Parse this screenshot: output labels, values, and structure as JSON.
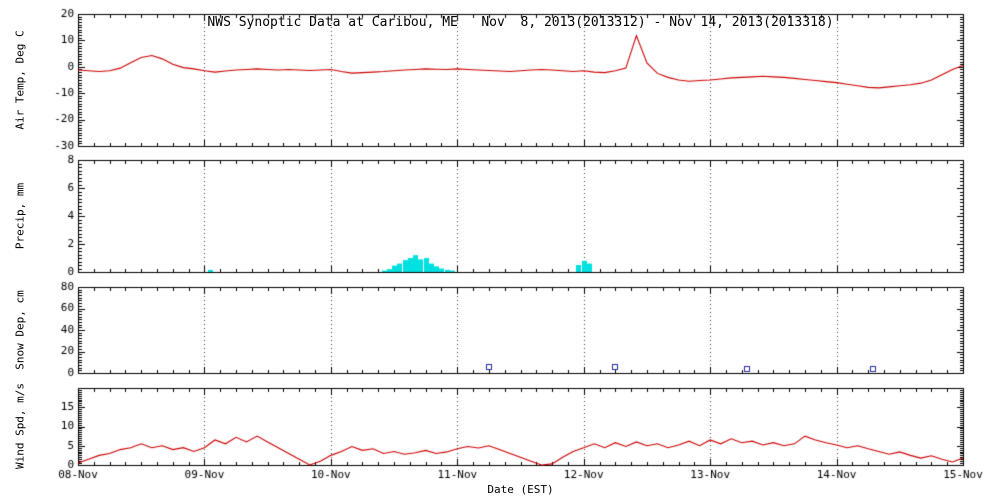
{
  "figure": {
    "title": "NWS Synoptic Data at Caribou, ME   Nov  8, 2013(2013312) - Nov 14, 2013(2013318)",
    "background": "#ffffff",
    "frame_color": "#000000",
    "gridline_color": "#444444"
  },
  "x_axis": {
    "label": "Date (EST)",
    "range_days": [
      0,
      7
    ],
    "tick_labels": [
      "08-Nov",
      "09-Nov",
      "10-Nov",
      "11-Nov",
      "12-Nov",
      "13-Nov",
      "14-Nov",
      "15-Nov"
    ],
    "minor_tick_hours": 3
  },
  "chart_data": [
    {
      "name": "air-temperature",
      "type": "line",
      "ylabel": "Air Temp, Deg C",
      "ylim": [
        -30,
        20
      ],
      "yticks": [
        20,
        10,
        0,
        -10,
        -20,
        -30
      ],
      "ymajor": 10,
      "yminor": 1,
      "color": "#cc0000",
      "x_start_hours": 0,
      "x_step_hours": 2,
      "values": [
        -1.2,
        -1.5,
        -1.8,
        -1.5,
        -0.5,
        1.5,
        3.5,
        4.3,
        3.0,
        1.0,
        -0.3,
        -0.8,
        -1.5,
        -2.0,
        -1.6,
        -1.2,
        -1.0,
        -0.8,
        -1.0,
        -1.2,
        -1.0,
        -1.2,
        -1.4,
        -1.2,
        -1.0,
        -1.8,
        -2.4,
        -2.2,
        -2.0,
        -1.8,
        -1.5,
        -1.2,
        -1.0,
        -0.8,
        -0.9,
        -1.0,
        -0.8,
        -1.0,
        -1.2,
        -1.4,
        -1.6,
        -1.8,
        -1.5,
        -1.2,
        -1.0,
        -1.2,
        -1.5,
        -1.8,
        -1.5,
        -2.0,
        -2.2,
        -1.5,
        -0.5,
        11.8,
        1.5,
        -2.5,
        -4.0,
        -5.0,
        -5.5,
        -5.2,
        -5.0,
        -4.6,
        -4.2,
        -4.0,
        -3.8,
        -3.6,
        -3.8,
        -4.0,
        -4.4,
        -4.8,
        -5.2,
        -5.6,
        -6.0,
        -6.6,
        -7.2,
        -7.8,
        -8.0,
        -7.6,
        -7.2,
        -6.8,
        -6.2,
        -5.0,
        -3.0,
        -1.0,
        0.5
      ]
    },
    {
      "name": "precipitation",
      "type": "bar",
      "ylabel": "Precip, mm",
      "ylim": [
        0,
        8
      ],
      "yticks": [
        8,
        6,
        4,
        2,
        0
      ],
      "ymajor": 2,
      "yminor": 0.25,
      "color": "#00e0e0",
      "bar_width_hours": 1,
      "points": [
        [
          25,
          0.15
        ],
        [
          58,
          0.1
        ],
        [
          59,
          0.2
        ],
        [
          60,
          0.45
        ],
        [
          61,
          0.6
        ],
        [
          62,
          0.85
        ],
        [
          63,
          1.0
        ],
        [
          64,
          1.2
        ],
        [
          65,
          0.9
        ],
        [
          66,
          1.0
        ],
        [
          67,
          0.6
        ],
        [
          68,
          0.4
        ],
        [
          69,
          0.25
        ],
        [
          70,
          0.15
        ],
        [
          71,
          0.1
        ],
        [
          95,
          0.5
        ],
        [
          96,
          0.8
        ],
        [
          97,
          0.6
        ]
      ]
    },
    {
      "name": "snow-depth",
      "type": "scatter",
      "ylabel": "Snow Dep, cm",
      "ylim": [
        0,
        80
      ],
      "yticks": [
        80,
        60,
        40,
        20,
        0
      ],
      "ymajor": 20,
      "yminor": 2.5,
      "color": "#2a2aad",
      "marker": "open-square",
      "points": [
        [
          78,
          6
        ],
        [
          102,
          6
        ],
        [
          127,
          4
        ],
        [
          151,
          4
        ]
      ]
    },
    {
      "name": "wind-speed",
      "type": "line",
      "ylabel": "Wind Spd, m/s",
      "ylim": [
        0,
        20
      ],
      "yticks": [
        15,
        10,
        5,
        0
      ],
      "ymajor": 5,
      "yminor": 0.5,
      "color": "#cc0000",
      "x_start_hours": 0,
      "x_step_hours": 2,
      "values": [
        0.5,
        1.5,
        2.5,
        3.0,
        4.0,
        4.5,
        5.5,
        4.5,
        5.0,
        4.0,
        4.5,
        3.5,
        4.5,
        6.5,
        5.5,
        7.2,
        6.0,
        7.5,
        6.0,
        4.5,
        3.0,
        1.5,
        0.0,
        1.0,
        2.5,
        3.5,
        4.8,
        3.8,
        4.2,
        3.0,
        3.5,
        2.8,
        3.2,
        3.8,
        3.0,
        3.4,
        4.2,
        4.8,
        4.4,
        5.0,
        4.0,
        3.0,
        2.0,
        1.0,
        0.0,
        0.3,
        2.0,
        3.5,
        4.5,
        5.5,
        4.5,
        5.8,
        4.8,
        6.0,
        5.0,
        5.5,
        4.5,
        5.2,
        6.2,
        5.0,
        6.5,
        5.5,
        6.8,
        5.8,
        6.2,
        5.2,
        5.8,
        5.0,
        5.5,
        7.5,
        6.5,
        5.8,
        5.2,
        4.5,
        5.0,
        4.2,
        3.5,
        2.8,
        3.4,
        2.5,
        1.8,
        2.4,
        1.5,
        0.8,
        1.8
      ]
    }
  ]
}
